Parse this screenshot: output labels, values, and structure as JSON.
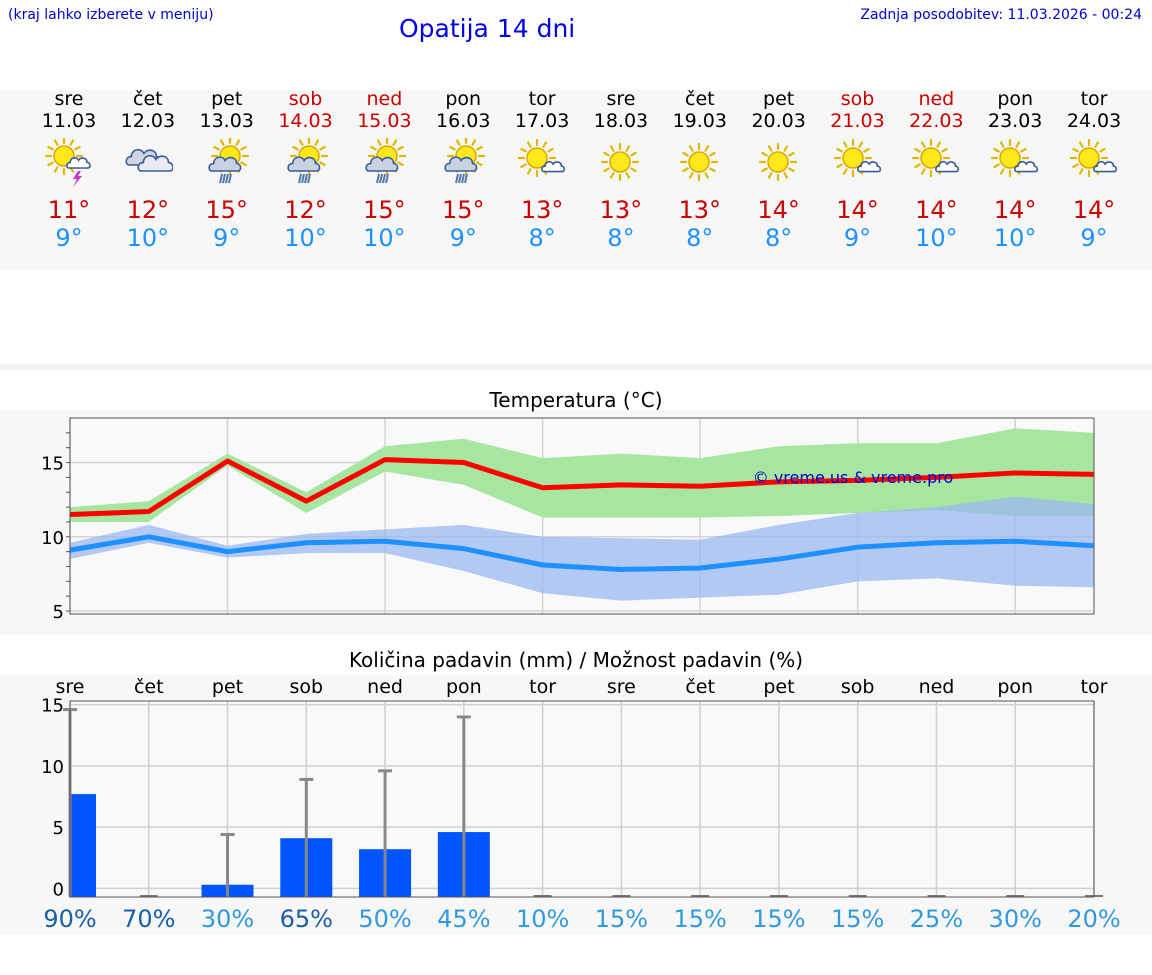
{
  "header": {
    "hint": "(kraj lahko izberete v meniju)",
    "title": "Opatija 14 dni",
    "updated": "Zadnja posodobitev: 11.03.2026 - 00:24"
  },
  "days": [
    {
      "name": "sre",
      "date": "11.03",
      "weekend": false,
      "icon": "sun-storm-icon",
      "tmax": "11°",
      "tmin": "9°"
    },
    {
      "name": "čet",
      "date": "12.03",
      "weekend": false,
      "icon": "cloudy-icon",
      "tmax": "12°",
      "tmin": "10°"
    },
    {
      "name": "pet",
      "date": "13.03",
      "weekend": false,
      "icon": "sun-cloud-rain-icon",
      "tmax": "15°",
      "tmin": "9°"
    },
    {
      "name": "sob",
      "date": "14.03",
      "weekend": true,
      "icon": "sun-cloud-rain-icon",
      "tmax": "12°",
      "tmin": "10°"
    },
    {
      "name": "ned",
      "date": "15.03",
      "weekend": true,
      "icon": "sun-cloud-rain-icon",
      "tmax": "15°",
      "tmin": "10°"
    },
    {
      "name": "pon",
      "date": "16.03",
      "weekend": false,
      "icon": "sun-cloud-rain-icon",
      "tmax": "15°",
      "tmin": "9°"
    },
    {
      "name": "tor",
      "date": "17.03",
      "weekend": false,
      "icon": "sun-small-cloud-icon",
      "tmax": "13°",
      "tmin": "8°"
    },
    {
      "name": "sre",
      "date": "18.03",
      "weekend": false,
      "icon": "sun-icon",
      "tmax": "13°",
      "tmin": "8°"
    },
    {
      "name": "čet",
      "date": "19.03",
      "weekend": false,
      "icon": "sun-icon",
      "tmax": "13°",
      "tmin": "8°"
    },
    {
      "name": "pet",
      "date": "20.03",
      "weekend": false,
      "icon": "sun-icon",
      "tmax": "14°",
      "tmin": "8°"
    },
    {
      "name": "sob",
      "date": "21.03",
      "weekend": true,
      "icon": "sun-small-cloud-icon",
      "tmax": "14°",
      "tmin": "9°"
    },
    {
      "name": "ned",
      "date": "22.03",
      "weekend": true,
      "icon": "sun-small-cloud-icon",
      "tmax": "14°",
      "tmin": "10°"
    },
    {
      "name": "pon",
      "date": "23.03",
      "weekend": false,
      "icon": "sun-small-cloud-icon",
      "tmax": "14°",
      "tmin": "10°"
    },
    {
      "name": "tor",
      "date": "24.03",
      "weekend": false,
      "icon": "sun-small-cloud-icon",
      "tmax": "14°",
      "tmin": "9°"
    }
  ],
  "colors": {
    "max_line": "#ff0000",
    "max_band": "#a6e6a0",
    "min_line": "#1e90ff",
    "min_band": "#9ab8f0",
    "overlap_band": "#70c0a8",
    "precip_bar": "#0055ff",
    "error_bar": "#888888",
    "weekend": "#cc0000",
    "prob_dark": "#1a5fa8",
    "prob_light": "#3399dd"
  },
  "chart_data": [
    {
      "type": "line",
      "title": "Temperatura (°C)",
      "watermark": "© vreme.us & vreme.pro",
      "x": [
        0,
        1,
        2,
        3,
        4,
        5,
        6,
        7,
        8,
        9,
        10,
        11,
        12,
        13
      ],
      "xlim": [
        0,
        13
      ],
      "ylim": [
        4.8,
        18
      ],
      "yticks": [
        "5",
        "10",
        "15"
      ],
      "grid": true,
      "series": [
        {
          "name": "max",
          "values": [
            11.5,
            11.7,
            15.1,
            12.4,
            15.2,
            15.0,
            13.3,
            13.5,
            13.4,
            13.7,
            13.8,
            14.0,
            14.3,
            14.2
          ],
          "band_low": [
            11.0,
            11.0,
            14.8,
            11.6,
            14.4,
            13.5,
            11.3,
            11.3,
            11.3,
            11.4,
            11.6,
            11.8,
            11.4,
            11.4
          ],
          "band_high": [
            12.0,
            12.4,
            15.6,
            13.0,
            16.1,
            16.6,
            15.3,
            15.6,
            15.3,
            16.1,
            16.3,
            16.3,
            17.3,
            17.0
          ]
        },
        {
          "name": "min",
          "values": [
            9.1,
            10.0,
            9.0,
            9.6,
            9.7,
            9.2,
            8.1,
            7.8,
            7.9,
            8.5,
            9.3,
            9.6,
            9.7,
            9.4
          ],
          "band_low": [
            8.5,
            9.6,
            8.6,
            8.9,
            8.9,
            7.7,
            6.2,
            5.7,
            5.9,
            6.1,
            7.0,
            7.2,
            6.7,
            6.6
          ],
          "band_high": [
            9.6,
            10.8,
            9.4,
            10.2,
            10.5,
            10.8,
            10.0,
            9.9,
            9.8,
            10.8,
            11.6,
            12.0,
            12.7,
            12.2
          ]
        }
      ]
    },
    {
      "type": "bar",
      "title": "Količina padavin (mm) / Možnost padavin (%)",
      "categories": [
        "sre",
        "čet",
        "pet",
        "sob",
        "ned",
        "pon",
        "tor",
        "sre",
        "čet",
        "pet",
        "sob",
        "ned",
        "pon",
        "tor"
      ],
      "values": [
        7.7,
        0,
        0.3,
        4.1,
        3.2,
        4.6,
        0,
        0,
        0,
        0,
        0,
        0,
        0,
        0
      ],
      "error_high": [
        14.6,
        0,
        4.4,
        8.9,
        9.6,
        14.0,
        0,
        0,
        0,
        0,
        0,
        0,
        0,
        0
      ],
      "probability": [
        "90%",
        "70%",
        "30%",
        "65%",
        "50%",
        "45%",
        "10%",
        "15%",
        "15%",
        "15%",
        "15%",
        "25%",
        "30%",
        "20%"
      ],
      "probability_strong": [
        true,
        true,
        false,
        true,
        false,
        false,
        false,
        false,
        false,
        false,
        false,
        false,
        false,
        false
      ],
      "ylim": [
        -0.7,
        15.3
      ],
      "yticks": [
        "0",
        "5",
        "10",
        "15"
      ],
      "grid": true
    }
  ]
}
